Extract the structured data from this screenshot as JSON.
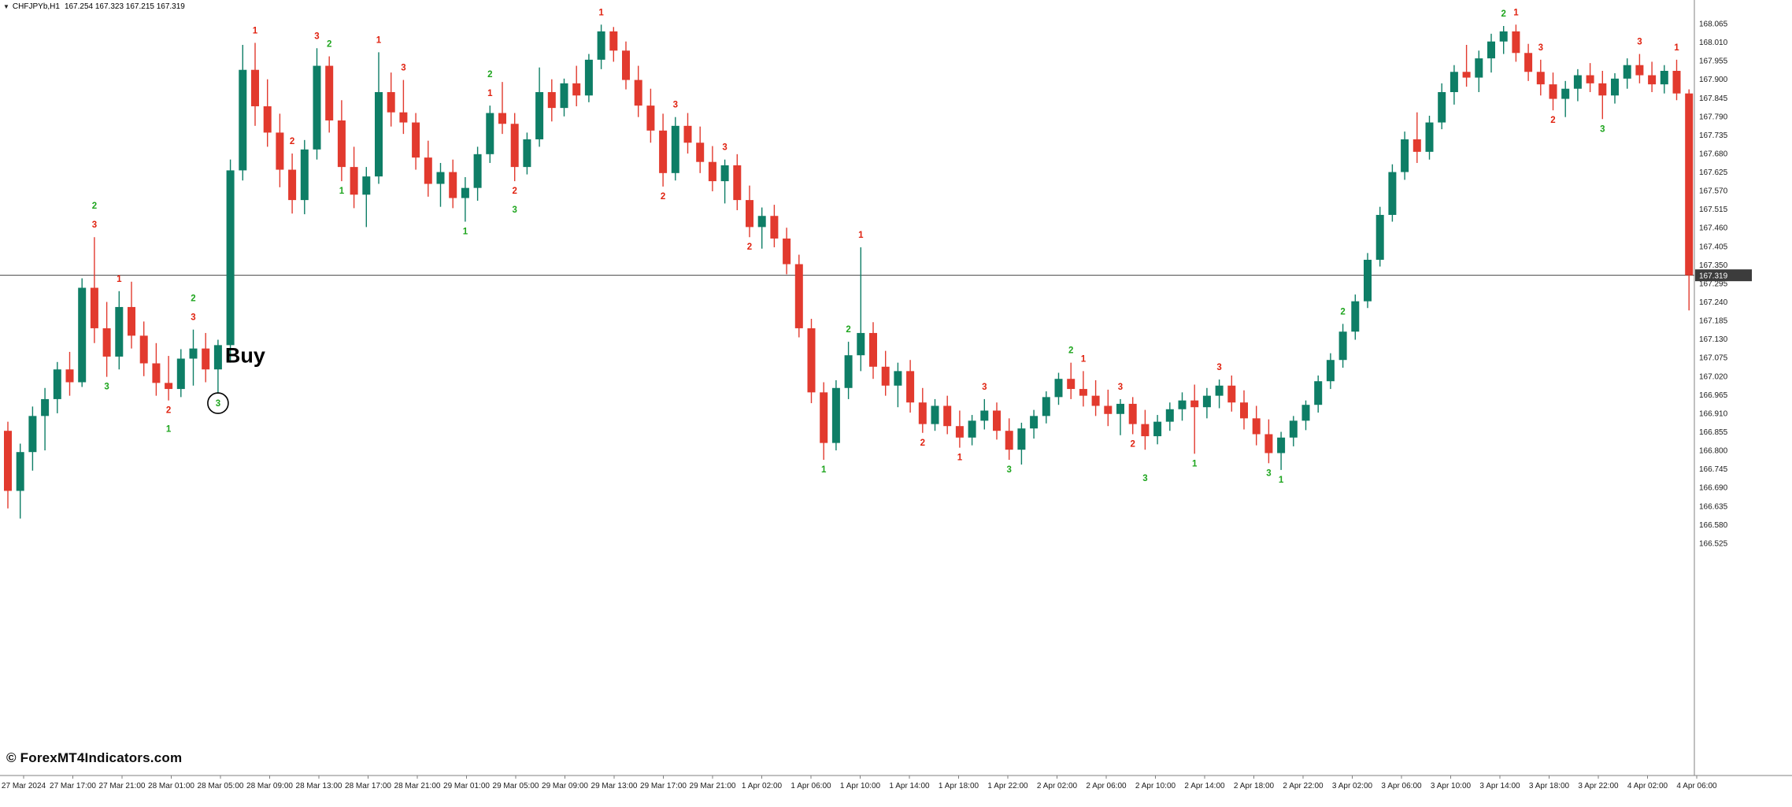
{
  "window": {
    "symbol_timeframe": "CHFJPYb,H1",
    "ohlc_text": "167.254 167.323 167.215 167.319"
  },
  "watermark": "© ForexMT4Indicators.com",
  "chart_data": {
    "type": "candlestick",
    "symbol": "CHFJPYb",
    "timeframe": "H1",
    "title": "CHFJPYb,H1 167.254 167.323 167.215 167.319",
    "current_price": "167.319",
    "grid": "off",
    "legend_position": "none",
    "price_axis_labels": [
      "168.065",
      "168.010",
      "167.955",
      "167.900",
      "167.845",
      "167.790",
      "167.735",
      "167.680",
      "167.625",
      "167.570",
      "167.515",
      "167.460",
      "167.405",
      "167.350",
      "167.295",
      "167.240",
      "167.185",
      "167.130",
      "167.075",
      "167.020",
      "166.965",
      "166.910",
      "166.855",
      "166.800",
      "166.745",
      "166.690",
      "166.635",
      "166.580",
      "166.525"
    ],
    "price_axis_range": [
      166.525,
      168.065
    ],
    "price_axis_step": 0.055,
    "time_axis_labels": [
      "27 Mar 2024",
      "27 Mar 17:00",
      "27 Mar 21:00",
      "28 Mar 01:00",
      "28 Mar 05:00",
      "28 Mar 09:00",
      "28 Mar 13:00",
      "28 Mar 17:00",
      "28 Mar 21:00",
      "29 Mar 01:00",
      "29 Mar 05:00",
      "29 Mar 09:00",
      "29 Mar 13:00",
      "29 Mar 17:00",
      "29 Mar 21:00",
      "1 Apr 02:00",
      "1 Apr 06:00",
      "1 Apr 10:00",
      "1 Apr 14:00",
      "1 Apr 18:00",
      "1 Apr 22:00",
      "2 Apr 02:00",
      "2 Apr 06:00",
      "2 Apr 10:00",
      "2 Apr 14:00",
      "2 Apr 18:00",
      "2 Apr 22:00",
      "3 Apr 02:00",
      "3 Apr 06:00",
      "3 Apr 10:00",
      "3 Apr 14:00",
      "3 Apr 18:00",
      "3 Apr 22:00",
      "4 Apr 02:00",
      "4 Apr 06:00"
    ],
    "annotations": {
      "buy_label": "Buy",
      "buy_candle_index": 17,
      "circled_signal_candle_index": 17
    },
    "colors": {
      "background": "#ffffff",
      "bull": "#0E7E66",
      "bear": "#E23A2E",
      "signal_red": "#E02210",
      "signal_green": "#1EA51E",
      "price_line": "#444444",
      "price_tag_bg": "#3C3C3C",
      "price_tag_text": "#ffffff",
      "axis_text": "#1a1a1a",
      "axis_line": "#808080",
      "annotation_text": "#000000"
    },
    "candles_format": [
      "open",
      "high",
      "low",
      "close"
    ],
    "candles": [
      [
        166.858,
        166.885,
        166.628,
        166.68
      ],
      [
        166.68,
        166.82,
        166.598,
        166.795
      ],
      [
        166.795,
        166.93,
        166.74,
        166.902
      ],
      [
        166.902,
        166.985,
        166.8,
        166.952
      ],
      [
        166.952,
        167.062,
        166.91,
        167.04
      ],
      [
        167.04,
        167.092,
        166.962,
        167.002
      ],
      [
        167.002,
        167.31,
        166.988,
        167.282
      ],
      [
        167.282,
        167.432,
        167.118,
        167.162
      ],
      [
        167.162,
        167.24,
        167.018,
        167.078
      ],
      [
        167.078,
        167.272,
        167.04,
        167.225
      ],
      [
        167.225,
        167.3,
        167.102,
        167.14
      ],
      [
        167.14,
        167.182,
        167.02,
        167.058
      ],
      [
        167.058,
        167.118,
        166.962,
        167.0
      ],
      [
        167.0,
        167.08,
        166.948,
        166.982
      ],
      [
        166.982,
        167.1,
        166.958,
        167.072
      ],
      [
        167.072,
        167.158,
        166.992,
        167.102
      ],
      [
        167.102,
        167.148,
        167.002,
        167.04
      ],
      [
        167.04,
        167.128,
        166.968,
        167.112
      ],
      [
        167.112,
        167.662,
        167.06,
        167.63
      ],
      [
        167.63,
        168.002,
        167.6,
        167.928
      ],
      [
        167.928,
        168.008,
        167.762,
        167.82
      ],
      [
        167.82,
        167.9,
        167.7,
        167.742
      ],
      [
        167.742,
        167.798,
        167.58,
        167.632
      ],
      [
        167.632,
        167.68,
        167.502,
        167.542
      ],
      [
        167.542,
        167.72,
        167.5,
        167.692
      ],
      [
        167.692,
        167.992,
        167.662,
        167.94
      ],
      [
        167.94,
        167.968,
        167.742,
        167.778
      ],
      [
        167.778,
        167.838,
        167.598,
        167.64
      ],
      [
        167.64,
        167.7,
        167.518,
        167.558
      ],
      [
        167.558,
        167.64,
        167.462,
        167.612
      ],
      [
        167.612,
        167.98,
        167.59,
        167.862
      ],
      [
        167.862,
        167.92,
        167.76,
        167.802
      ],
      [
        167.802,
        167.898,
        167.738,
        167.772
      ],
      [
        167.772,
        167.8,
        167.632,
        167.668
      ],
      [
        167.668,
        167.718,
        167.552,
        167.59
      ],
      [
        167.59,
        167.652,
        167.522,
        167.625
      ],
      [
        167.625,
        167.662,
        167.518,
        167.548
      ],
      [
        167.548,
        167.61,
        167.478,
        167.578
      ],
      [
        167.578,
        167.7,
        167.54,
        167.678
      ],
      [
        167.678,
        167.822,
        167.652,
        167.8
      ],
      [
        167.8,
        167.892,
        167.738,
        167.768
      ],
      [
        167.768,
        167.8,
        167.598,
        167.64
      ],
      [
        167.64,
        167.742,
        167.618,
        167.722
      ],
      [
        167.722,
        167.935,
        167.7,
        167.862
      ],
      [
        167.862,
        167.9,
        167.775,
        167.815
      ],
      [
        167.815,
        167.902,
        167.79,
        167.888
      ],
      [
        167.888,
        167.94,
        167.82,
        167.852
      ],
      [
        167.852,
        167.975,
        167.832,
        167.958
      ],
      [
        167.958,
        168.062,
        167.93,
        168.042
      ],
      [
        168.042,
        168.055,
        167.952,
        167.985
      ],
      [
        167.985,
        168.012,
        167.87,
        167.898
      ],
      [
        167.898,
        167.94,
        167.788,
        167.822
      ],
      [
        167.822,
        167.872,
        167.712,
        167.748
      ],
      [
        167.748,
        167.798,
        167.582,
        167.622
      ],
      [
        167.622,
        167.788,
        167.6,
        167.762
      ],
      [
        167.762,
        167.8,
        167.68,
        167.712
      ],
      [
        167.712,
        167.76,
        167.622,
        167.655
      ],
      [
        167.655,
        167.702,
        167.568,
        167.598
      ],
      [
        167.598,
        167.662,
        167.532,
        167.645
      ],
      [
        167.645,
        167.678,
        167.512,
        167.542
      ],
      [
        167.542,
        167.585,
        167.432,
        167.462
      ],
      [
        167.462,
        167.52,
        167.398,
        167.495
      ],
      [
        167.495,
        167.528,
        167.402,
        167.428
      ],
      [
        167.428,
        167.46,
        167.322,
        167.352
      ],
      [
        167.352,
        167.38,
        167.135,
        167.162
      ],
      [
        167.162,
        167.19,
        166.94,
        166.972
      ],
      [
        166.972,
        167.002,
        166.772,
        166.822
      ],
      [
        166.822,
        167.008,
        166.8,
        166.985
      ],
      [
        166.985,
        167.122,
        166.952,
        167.082
      ],
      [
        167.082,
        167.402,
        167.035,
        167.148
      ],
      [
        167.148,
        167.18,
        167.012,
        167.048
      ],
      [
        167.048,
        167.095,
        166.962,
        166.992
      ],
      [
        166.992,
        167.06,
        166.928,
        167.035
      ],
      [
        167.035,
        167.068,
        166.912,
        166.942
      ],
      [
        166.942,
        166.985,
        166.852,
        166.878
      ],
      [
        166.878,
        166.952,
        166.858,
        166.932
      ],
      [
        166.932,
        166.962,
        166.848,
        166.872
      ],
      [
        166.872,
        166.918,
        166.808,
        166.838
      ],
      [
        166.838,
        166.905,
        166.815,
        166.888
      ],
      [
        166.888,
        166.952,
        166.862,
        166.918
      ],
      [
        166.918,
        166.942,
        166.832,
        166.858
      ],
      [
        166.858,
        166.895,
        166.772,
        166.802
      ],
      [
        166.802,
        166.882,
        166.758,
        166.865
      ],
      [
        166.865,
        166.92,
        166.835,
        166.902
      ],
      [
        166.902,
        166.975,
        166.88,
        166.958
      ],
      [
        166.958,
        167.03,
        166.935,
        167.012
      ],
      [
        167.012,
        167.06,
        166.952,
        166.982
      ],
      [
        166.982,
        167.035,
        166.93,
        166.962
      ],
      [
        166.962,
        167.008,
        166.902,
        166.932
      ],
      [
        166.932,
        166.98,
        166.872,
        166.908
      ],
      [
        166.908,
        166.952,
        166.845,
        166.938
      ],
      [
        166.938,
        166.958,
        166.848,
        166.878
      ],
      [
        166.878,
        166.92,
        166.802,
        166.842
      ],
      [
        166.842,
        166.905,
        166.818,
        166.885
      ],
      [
        166.885,
        166.942,
        166.858,
        166.922
      ],
      [
        166.922,
        166.972,
        166.888,
        166.948
      ],
      [
        166.948,
        166.995,
        166.79,
        166.928
      ],
      [
        166.928,
        166.985,
        166.895,
        166.962
      ],
      [
        166.962,
        167.01,
        166.925,
        166.992
      ],
      [
        166.992,
        167.022,
        166.915,
        166.942
      ],
      [
        166.942,
        166.978,
        166.862,
        166.895
      ],
      [
        166.895,
        166.932,
        166.815,
        166.848
      ],
      [
        166.848,
        166.892,
        166.762,
        166.792
      ],
      [
        166.792,
        166.855,
        166.742,
        166.838
      ],
      [
        166.838,
        166.902,
        166.812,
        166.888
      ],
      [
        166.888,
        166.948,
        166.86,
        166.935
      ],
      [
        166.935,
        167.022,
        166.912,
        167.005
      ],
      [
        167.005,
        167.088,
        166.982,
        167.068
      ],
      [
        167.068,
        167.175,
        167.045,
        167.152
      ],
      [
        167.152,
        167.262,
        167.128,
        167.242
      ],
      [
        167.242,
        167.385,
        167.222,
        167.365
      ],
      [
        167.365,
        167.522,
        167.345,
        167.498
      ],
      [
        167.498,
        167.648,
        167.478,
        167.625
      ],
      [
        167.625,
        167.745,
        167.602,
        167.722
      ],
      [
        167.722,
        167.802,
        167.652,
        167.685
      ],
      [
        167.685,
        167.792,
        167.662,
        167.772
      ],
      [
        167.772,
        167.888,
        167.752,
        167.862
      ],
      [
        167.862,
        167.942,
        167.825,
        167.922
      ],
      [
        167.922,
        168.002,
        167.878,
        167.905
      ],
      [
        167.905,
        167.985,
        167.862,
        167.962
      ],
      [
        167.962,
        168.035,
        167.92,
        168.012
      ],
      [
        168.012,
        168.058,
        167.975,
        168.042
      ],
      [
        168.042,
        168.062,
        167.952,
        167.978
      ],
      [
        167.978,
        168.005,
        167.895,
        167.922
      ],
      [
        167.922,
        167.958,
        167.852,
        167.885
      ],
      [
        167.885,
        167.92,
        167.808,
        167.842
      ],
      [
        167.842,
        167.895,
        167.788,
        167.872
      ],
      [
        167.872,
        167.93,
        167.835,
        167.912
      ],
      [
        167.912,
        167.948,
        167.862,
        167.888
      ],
      [
        167.888,
        167.925,
        167.782,
        167.852
      ],
      [
        167.852,
        167.918,
        167.828,
        167.902
      ],
      [
        167.902,
        167.962,
        167.872,
        167.942
      ],
      [
        167.942,
        167.975,
        167.888,
        167.912
      ],
      [
        167.912,
        167.952,
        167.862,
        167.885
      ],
      [
        167.885,
        167.942,
        167.858,
        167.925
      ],
      [
        167.925,
        167.958,
        167.838,
        167.858
      ],
      [
        167.858,
        167.87,
        167.215,
        167.319
      ]
    ],
    "signals_format": [
      "candle_index",
      "number",
      "color(r=red,g=green)",
      "side(a=above,b=below)",
      "stack_level",
      "circled"
    ],
    "signals": [
      [
        7,
        3,
        "r",
        "a",
        0,
        false
      ],
      [
        7,
        2,
        "g",
        "a",
        1,
        false
      ],
      [
        8,
        3,
        "g",
        "b",
        0,
        false
      ],
      [
        9,
        1,
        "r",
        "a",
        0,
        false
      ],
      [
        13,
        2,
        "r",
        "b",
        0,
        false
      ],
      [
        13,
        1,
        "g",
        "b",
        1,
        false
      ],
      [
        15,
        3,
        "r",
        "a",
        0,
        false
      ],
      [
        15,
        2,
        "g",
        "a",
        1,
        false
      ],
      [
        17,
        3,
        "g",
        "b",
        0,
        true
      ],
      [
        20,
        1,
        "r",
        "a",
        0,
        false
      ],
      [
        23,
        2,
        "r",
        "a",
        0,
        false
      ],
      [
        25,
        3,
        "r",
        "a",
        0,
        false
      ],
      [
        26,
        2,
        "g",
        "a",
        0,
        false
      ],
      [
        27,
        1,
        "g",
        "b",
        0,
        false
      ],
      [
        30,
        1,
        "r",
        "a",
        0,
        false
      ],
      [
        32,
        3,
        "r",
        "a",
        0,
        false
      ],
      [
        37,
        1,
        "g",
        "b",
        0,
        false
      ],
      [
        39,
        1,
        "r",
        "a",
        0,
        false
      ],
      [
        39,
        2,
        "g",
        "a",
        1,
        false
      ],
      [
        41,
        2,
        "r",
        "b",
        0,
        false
      ],
      [
        41,
        3,
        "g",
        "b",
        1,
        false
      ],
      [
        48,
        1,
        "r",
        "a",
        0,
        false
      ],
      [
        53,
        2,
        "r",
        "b",
        0,
        false
      ],
      [
        54,
        3,
        "r",
        "a",
        0,
        false
      ],
      [
        58,
        3,
        "r",
        "a",
        0,
        false
      ],
      [
        60,
        2,
        "r",
        "b",
        0,
        false
      ],
      [
        66,
        1,
        "g",
        "b",
        0,
        false
      ],
      [
        68,
        2,
        "g",
        "a",
        0,
        false
      ],
      [
        69,
        1,
        "r",
        "a",
        0,
        false
      ],
      [
        74,
        2,
        "r",
        "b",
        0,
        false
      ],
      [
        77,
        1,
        "r",
        "b",
        0,
        false
      ],
      [
        79,
        3,
        "r",
        "a",
        0,
        false
      ],
      [
        81,
        3,
        "g",
        "b",
        0,
        false
      ],
      [
        86,
        2,
        "g",
        "a",
        0,
        false
      ],
      [
        87,
        1,
        "r",
        "a",
        0,
        false
      ],
      [
        90,
        3,
        "r",
        "a",
        0,
        false
      ],
      [
        91,
        2,
        "r",
        "b",
        0,
        false
      ],
      [
        92,
        3,
        "g",
        "b",
        1,
        false
      ],
      [
        96,
        1,
        "g",
        "b",
        0,
        false
      ],
      [
        98,
        3,
        "r",
        "a",
        0,
        false
      ],
      [
        102,
        3,
        "g",
        "b",
        0,
        false
      ],
      [
        103,
        1,
        "g",
        "b",
        0,
        false
      ],
      [
        108,
        2,
        "g",
        "a",
        0,
        false
      ],
      [
        121,
        2,
        "g",
        "a",
        0,
        false
      ],
      [
        122,
        1,
        "r",
        "a",
        0,
        false
      ],
      [
        124,
        3,
        "r",
        "a",
        0,
        false
      ],
      [
        125,
        2,
        "r",
        "b",
        0,
        false
      ],
      [
        129,
        3,
        "g",
        "b",
        0,
        false
      ],
      [
        132,
        3,
        "r",
        "a",
        0,
        false
      ],
      [
        135,
        1,
        "r",
        "a",
        0,
        false
      ]
    ]
  }
}
